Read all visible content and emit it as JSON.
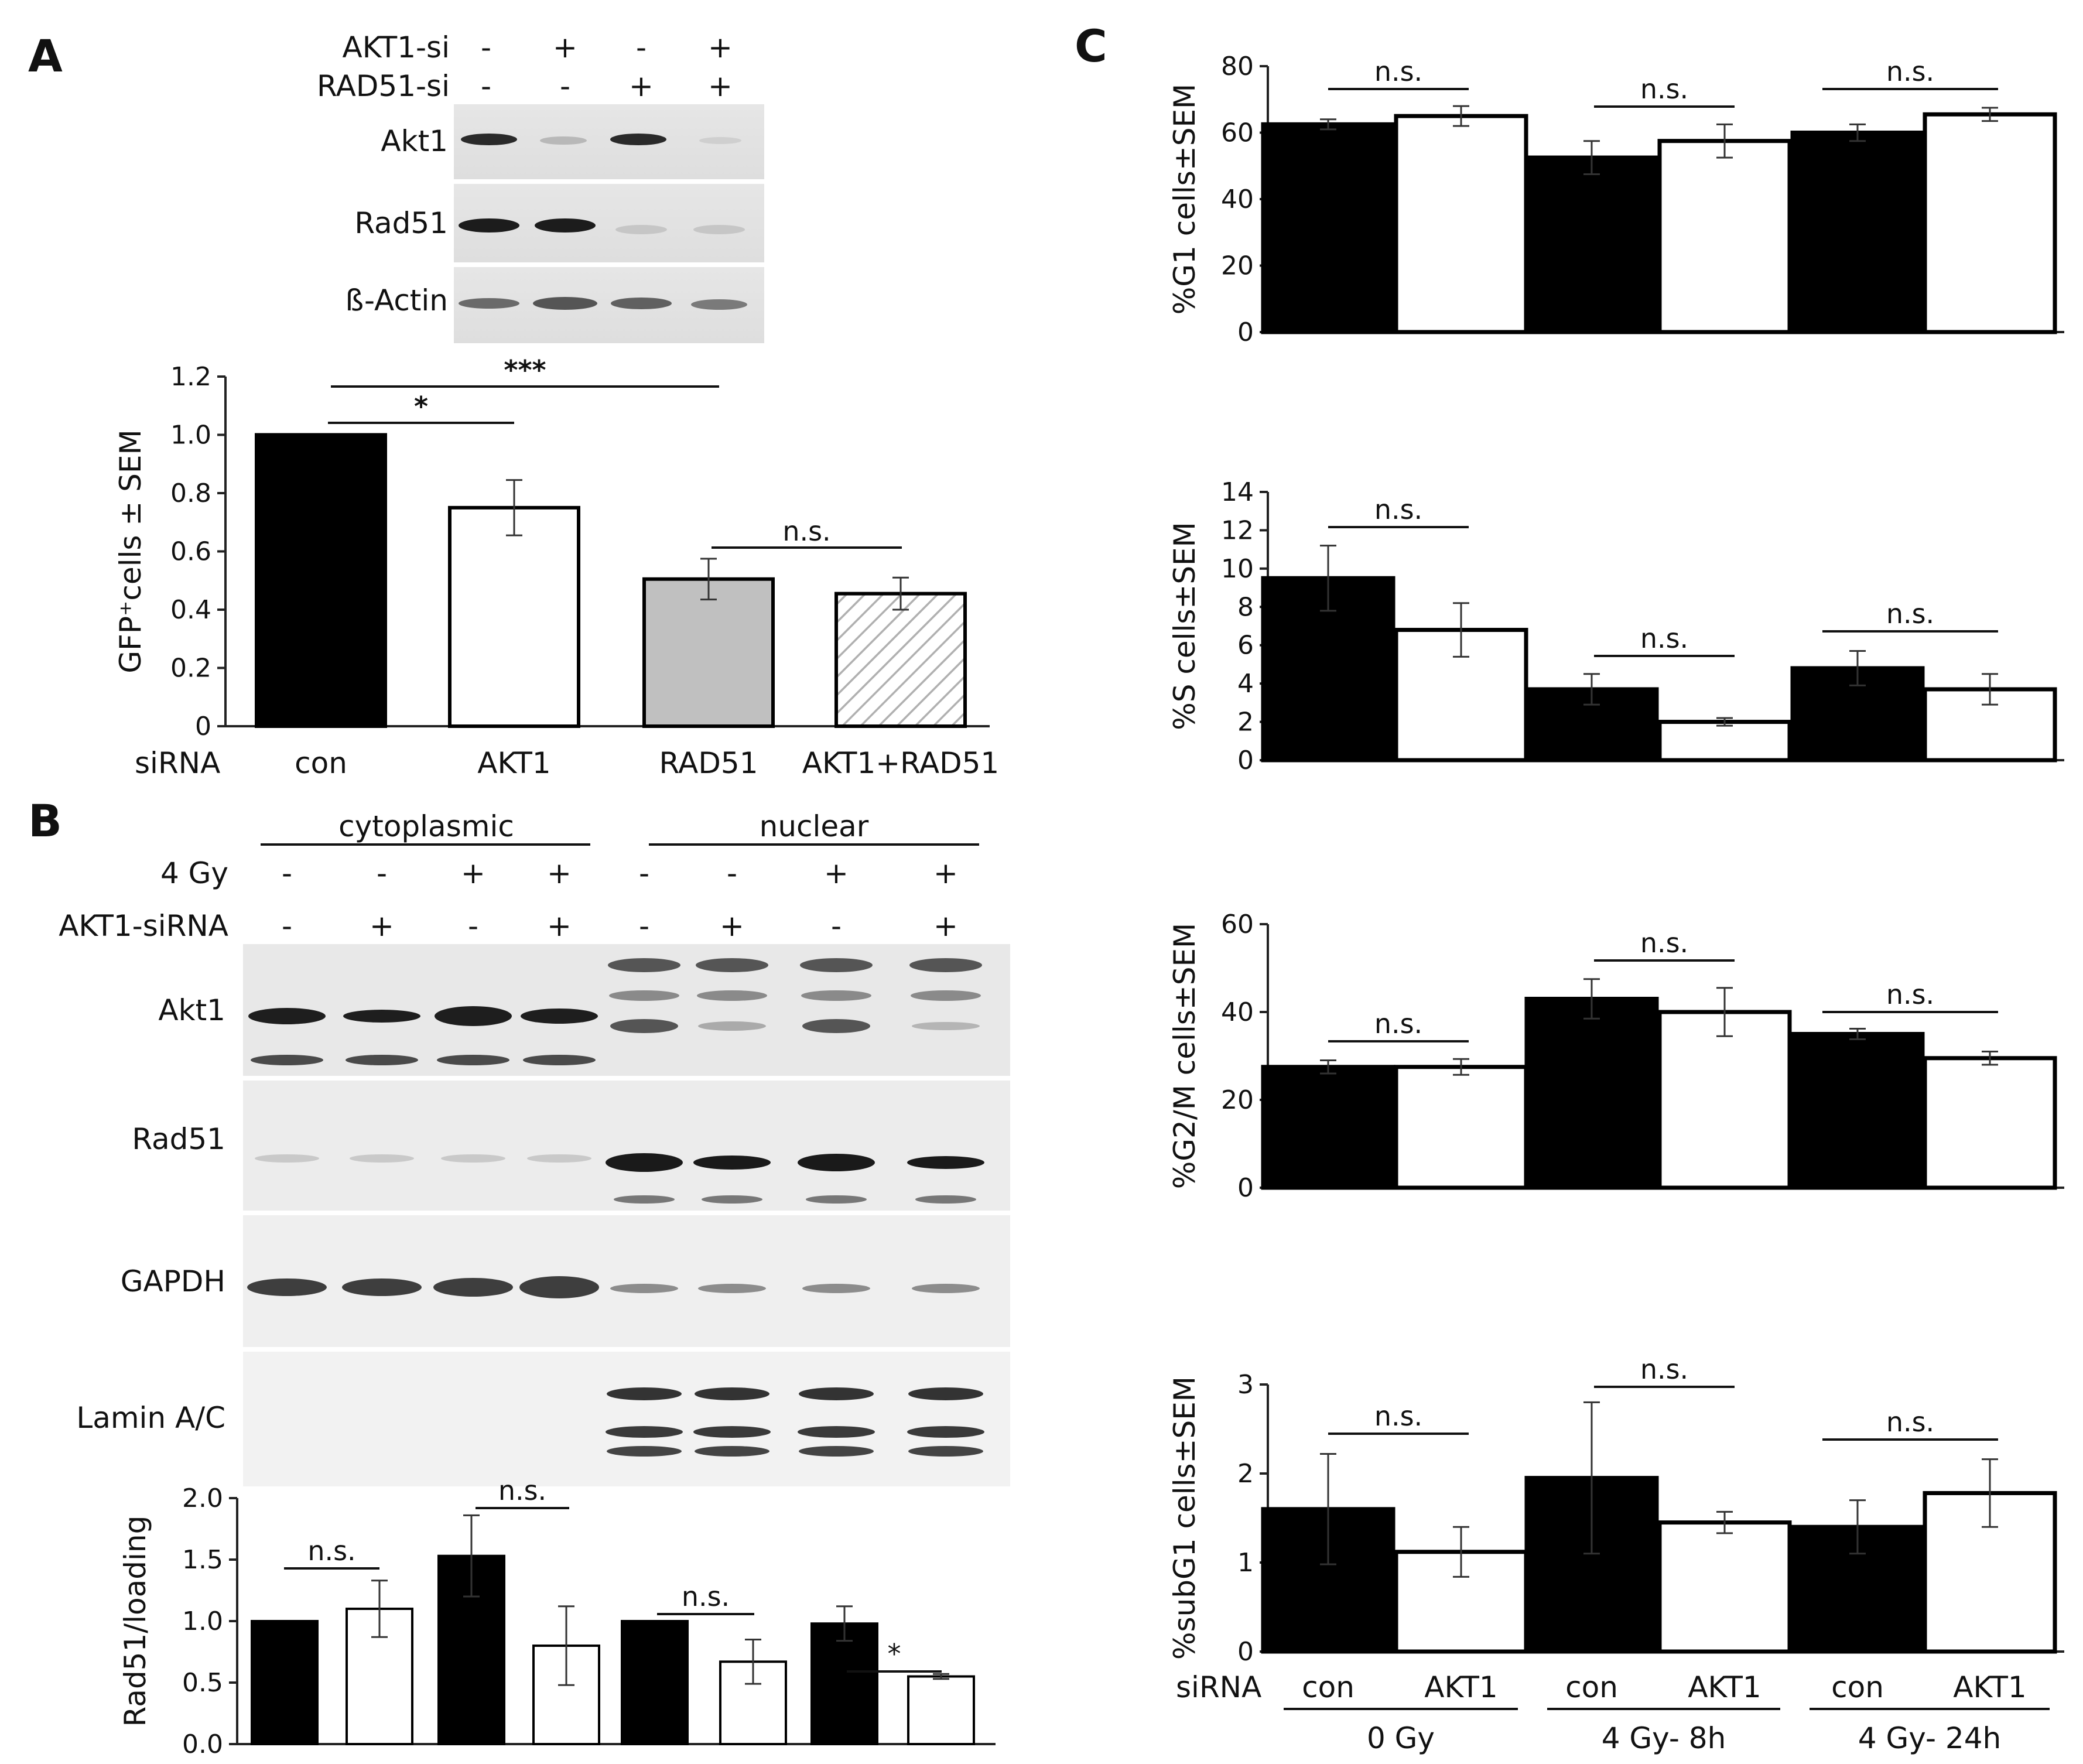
{
  "panel_letters": [
    "A",
    "B",
    "C"
  ],
  "panelA": {
    "blot": {
      "conditions": [
        {
          "label": "AKT1-si",
          "signs": [
            "-",
            "+",
            "-",
            "+"
          ]
        },
        {
          "label": "RAD51-si",
          "signs": [
            "-",
            "-",
            "+",
            "+"
          ]
        }
      ],
      "rows": [
        "Akt1",
        "Rad51",
        "ß-Actin"
      ]
    },
    "xaxis_prefix": "siRNA"
  },
  "panelB": {
    "fractions": [
      "cytoplasmic",
      "nuclear"
    ],
    "conditions": [
      {
        "label": "4 Gy",
        "signs": [
          "-",
          "-",
          "+",
          "+",
          "-",
          "-",
          "+",
          "+"
        ]
      },
      {
        "label": "AKT1-siRNA",
        "signs": [
          "-",
          "+",
          "-",
          "+",
          "-",
          "+",
          "-",
          "+"
        ]
      }
    ],
    "rows": [
      "Akt1",
      "Rad51",
      "GAPDH",
      "Lamin A/C"
    ]
  },
  "panelC": {
    "xaxis_prefix": "siRNA",
    "group_labels": [
      "0 Gy",
      "4 Gy- 8h",
      "4 Gy- 24h"
    ]
  },
  "colors": {
    "black": "#000000",
    "white": "#ffffff",
    "gray": "#c0c0c0",
    "hatch": "#b0b0b0"
  },
  "chart_data": [
    {
      "id": "A",
      "type": "bar",
      "ylabel": "GFP⁺cells ± SEM",
      "ylim": [
        0,
        1.2
      ],
      "yticks": [
        "0",
        "0.2",
        "0.4",
        "0.6",
        "0.8",
        "1.0",
        "1.2"
      ],
      "categories": [
        "con",
        "AKT1",
        "RAD51",
        "AKT1+RAD51"
      ],
      "values": [
        1.0,
        0.75,
        0.505,
        0.455
      ],
      "errors": [
        0,
        0.095,
        0.07,
        0.055
      ],
      "fills": [
        "black",
        "white",
        "gray",
        "hatch"
      ],
      "significance": [
        {
          "label": "***",
          "from": 0,
          "to": 2
        },
        {
          "label": "*",
          "from": 0,
          "to": 1
        },
        {
          "label": "n.s.",
          "from": 2,
          "to": 3
        }
      ]
    },
    {
      "id": "B",
      "type": "bar",
      "ylabel": "Rad51/loading",
      "ylim": [
        0,
        2.0
      ],
      "yticks": [
        "0.0",
        "0.5",
        "1.0",
        "1.5",
        "2.0"
      ],
      "values": [
        1.0,
        1.1,
        1.53,
        0.8,
        1.0,
        0.67,
        0.98,
        0.55
      ],
      "errors": [
        0,
        0.23,
        0.33,
        0.32,
        0,
        0.18,
        0.14,
        0.02
      ],
      "fills": [
        "black",
        "white",
        "black",
        "white",
        "black",
        "white",
        "black",
        "white"
      ],
      "significance": [
        {
          "label": "n.s.",
          "from": 0,
          "to": 1
        },
        {
          "label": "n.s.",
          "from": 2,
          "to": 3
        },
        {
          "label": "n.s.",
          "from": 4,
          "to": 5
        },
        {
          "label": "*",
          "from": 6,
          "to": 7
        }
      ]
    },
    {
      "id": "C-G1",
      "type": "bar",
      "ylabel": "%G1 cells±SEM",
      "ylim": [
        0,
        80
      ],
      "yticks": [
        "0",
        "20",
        "40",
        "60",
        "80"
      ],
      "values": [
        62.5,
        65,
        52.5,
        57.5,
        60,
        65.5
      ],
      "errors": [
        1.5,
        3,
        5,
        5,
        2.5,
        2
      ],
      "significance": [
        {
          "label": "n.s."
        },
        {
          "label": "n.s."
        },
        {
          "label": "n.s."
        }
      ]
    },
    {
      "id": "C-S",
      "type": "bar",
      "ylabel": "%S cells±SEM",
      "ylim": [
        0,
        14
      ],
      "yticks": [
        "0",
        "2",
        "4",
        "6",
        "8",
        "10",
        "12",
        "14"
      ],
      "values": [
        9.5,
        6.8,
        3.7,
        2.0,
        4.8,
        3.7
      ],
      "errors": [
        1.7,
        1.4,
        0.8,
        0.2,
        0.9,
        0.8
      ],
      "significance": [
        {
          "label": "n.s."
        },
        {
          "label": "n.s."
        },
        {
          "label": "n.s."
        }
      ]
    },
    {
      "id": "C-G2M",
      "type": "bar",
      "ylabel": "%G2/M cells±SEM",
      "ylim": [
        0,
        60
      ],
      "yticks": [
        "0",
        "20",
        "40",
        "60"
      ],
      "values": [
        27.5,
        27.5,
        43,
        40,
        35,
        29.5
      ],
      "errors": [
        1.5,
        1.8,
        4.5,
        5.5,
        1.2,
        1.5
      ],
      "significance": [
        {
          "label": "n.s."
        },
        {
          "label": "n.s."
        },
        {
          "label": "n.s."
        }
      ]
    },
    {
      "id": "C-subG1",
      "type": "bar",
      "ylabel": "%subG1 cells±SEM",
      "ylim": [
        0,
        3
      ],
      "yticks": [
        "0",
        "1",
        "2",
        "3"
      ],
      "categories": [
        "con",
        "AKT1",
        "con",
        "AKT1",
        "con",
        "AKT1"
      ],
      "values": [
        1.6,
        1.12,
        1.95,
        1.45,
        1.4,
        1.78
      ],
      "errors": [
        0.62,
        0.28,
        0.85,
        0.12,
        0.3,
        0.38
      ],
      "significance": [
        {
          "label": "n.s."
        },
        {
          "label": "n.s."
        },
        {
          "label": "n.s."
        }
      ]
    }
  ]
}
